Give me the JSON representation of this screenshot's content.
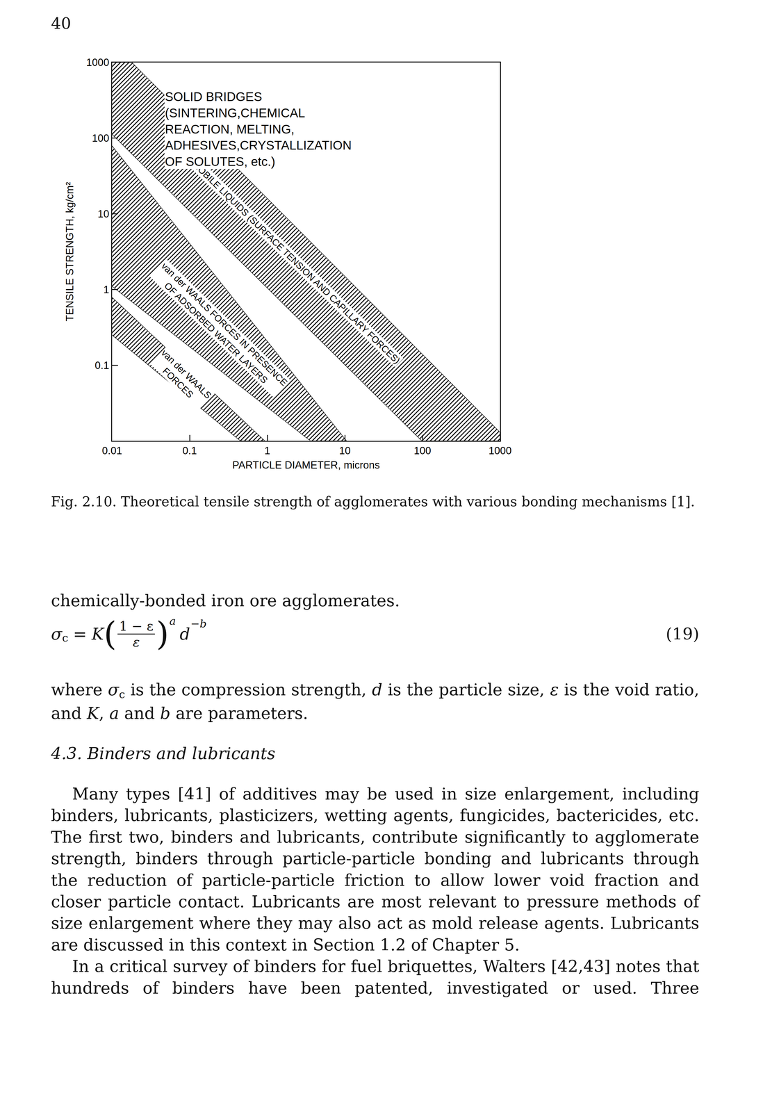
{
  "page_number": "40",
  "chart_data": {
    "type": "area",
    "log": true,
    "grid": false,
    "x_label": "PARTICLE DIAMETER, microns",
    "y_label": "TENSILE STRENGTH, kg/cm²",
    "xlim": [
      0.01,
      1000
    ],
    "ylim": [
      0.01,
      1000
    ],
    "xticks": [
      0.01,
      0.1,
      1,
      10,
      100,
      1000
    ],
    "yticks": [
      0.1,
      1,
      10,
      100,
      1000
    ],
    "series": [
      {
        "name": "MOBILE LIQUIDS (SURFACE TENSION AND CAPILLARY FORCES)",
        "x": [
          0.01,
          0.018,
          1000,
          1000,
          98,
          0.01
        ],
        "values": [
          1000,
          1000,
          0.013,
          0.01,
          0.01,
          112
        ]
      },
      {
        "name": "van der WAALS FORCES IN PRESENCE\nOF ADSORBED WATER LAYERS",
        "x": [
          0.01,
          10.5,
          3.6,
          0.01
        ],
        "values": [
          79,
          0.01,
          0.01,
          1.1
        ]
      },
      {
        "name": "van der WAALS\nFORCES",
        "x": [
          0.01,
          0.93,
          0.45,
          0.01
        ],
        "values": [
          0.79,
          0.01,
          0.01,
          0.25
        ]
      }
    ],
    "annotations": [
      {
        "text": "SOLID BRIDGES\n(SINTERING,CHEMICAL\nREACTION, MELTING,\nADHESIVES,CRYSTALLIZATION\nOF SOLUTES, etc.)"
      }
    ]
  },
  "caption": "Fig. 2.10. Theoretical tensile strength of agglomerates with various bonding mechanisms [1].",
  "continuation": "chemically-bonded iron ore agglomerates.",
  "equation": {
    "lhs": "σ",
    "lhs_sub": "c",
    "operator": "=",
    "coefficient": "K",
    "open": "(",
    "numerator": "1 − ε",
    "denominator": "ε",
    "close": ")",
    "exponent_1": "a",
    "base_2": "d",
    "exponent_2": "−b",
    "number": "(19)"
  },
  "where": [
    {
      "text": "where "
    },
    {
      "text": "σ",
      "style": "italic"
    },
    {
      "text": "c",
      "style": "sub"
    },
    {
      "text": " is the compression strength, "
    },
    {
      "text": "d",
      "style": "italic"
    },
    {
      "text": " is the particle size, "
    },
    {
      "text": "ε",
      "style": "italic"
    },
    {
      "text": " is the void ratio, and "
    },
    {
      "text": "K",
      "style": "italic"
    },
    {
      "text": ", "
    },
    {
      "text": "a",
      "style": "italic"
    },
    {
      "text": " and "
    },
    {
      "text": "b",
      "style": "italic"
    },
    {
      "text": " are parameters."
    }
  ],
  "section_heading": "4.3. Binders and lubricants",
  "paragraphs": [
    "Many types [41] of additives may be used in size enlargement, including binders, lubricants, plasticizers, wetting agents, fungicides, bactericides, etc. The first two, binders and lubricants, contribute significantly to agglomerate strength, binders through particle-particle bonding and lubricants through the reduction of particle-particle friction to allow lower void fraction and closer particle contact. Lubricants are most relevant to pressure methods of size enlargement where they may also act as mold release agents. Lubricants are discussed in this context in Section 1.2 of Chapter 5.",
    "In a critical survey of binders for fuel briquettes, Walters [42,43] notes that hundreds of binders have been patented, investigated or used. Three"
  ]
}
